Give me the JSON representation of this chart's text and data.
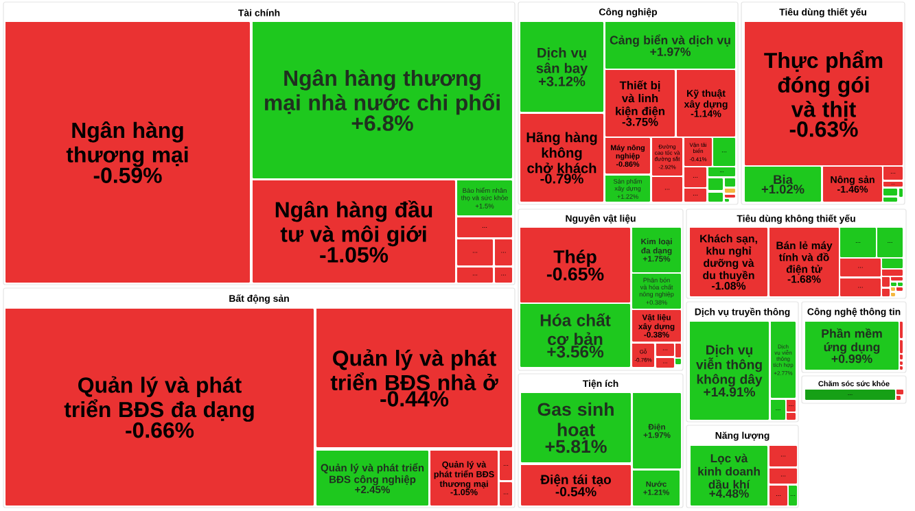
{
  "chart_data": [
    {
      "type": "other",
      "title": "Tài chính",
      "categories": [
        "Ngân hàng thương mại",
        "Ngân hàng thương mại nhà nước chi phối",
        "Ngân hàng đầu tư và môi giới",
        "Bảo hiểm nhân thọ và sức khỏe",
        "...",
        "...",
        "...",
        "...",
        "..."
      ],
      "values": [
        -0.59,
        6.8,
        -1.05,
        1.5,
        null,
        null,
        null,
        null,
        null
      ],
      "value_labels": [
        "-0.59%",
        "+6.8%",
        "-1.05%",
        "+1.5%",
        null,
        null,
        null,
        null,
        null
      ],
      "colors": [
        "#ea3232",
        "#1ec81e",
        "#ea3232",
        "#1ec81e",
        "#ea3232",
        "#ea3232",
        "#ea3232",
        "#ea3232",
        "#ea3232"
      ]
    },
    {
      "type": "other",
      "title": "Công nghiệp",
      "categories": [
        "Dịch vụ sân bay",
        "Hãng hàng không chở khách",
        "Cảng biển và dịch vụ",
        "Thiết bị và linh kiện điện",
        "Kỹ thuật xây dựng",
        "Máy nông nghiệp",
        "Đường cao tốc và đường sắt",
        "Vận tải biển",
        "...",
        "Sản phẩm xây dựng",
        "...",
        "...",
        "...",
        "...",
        null,
        null,
        null,
        null,
        null,
        null
      ],
      "values": [
        3.12,
        -0.79,
        1.97,
        -3.75,
        -1.14,
        -0.86,
        -2.92,
        -0.41,
        null,
        1.22,
        null,
        null,
        null,
        null,
        null,
        null,
        null,
        null,
        null,
        null
      ],
      "value_labels": [
        "+3.12%",
        "-0.79%",
        "+1.97%",
        "-3.75%",
        "-1.14%",
        "-0.86%",
        "-2.92%",
        "-0.41%",
        null,
        "+1.22%",
        null,
        null,
        null,
        null,
        null,
        null,
        null,
        null,
        null,
        null
      ],
      "colors": [
        "#1ec81e",
        "#ea3232",
        "#1ec81e",
        "#ea3232",
        "#ea3232",
        "#ea3232",
        "#ea3232",
        "#ea3232",
        "#1ec81e",
        "#1ec81e",
        "#ea3232",
        "#ea3232",
        "#ea3232",
        "#1ec81e",
        "#1ec81e",
        "#1ec81e",
        "#1ec81e",
        "#f4b840",
        "#ea3232",
        "#1ec81e"
      ]
    },
    {
      "type": "other",
      "title": "Tiêu dùng thiết yếu",
      "categories": [
        "Thực phẩm đóng gói và thịt",
        "Bia",
        "Nông sản",
        "...",
        "...",
        null,
        null,
        null
      ],
      "values": [
        -0.63,
        1.02,
        -1.46,
        null,
        null,
        null,
        null,
        null
      ],
      "value_labels": [
        "-0.63%",
        "+1.02%",
        "-1.46%",
        null,
        null,
        null,
        null,
        null
      ],
      "colors": [
        "#ea3232",
        "#1ec81e",
        "#ea3232",
        "#ea3232",
        "#ea3232",
        "#1ec81e",
        "#1ec81e",
        "#1ec81e"
      ]
    },
    {
      "type": "other",
      "title": "Nguyên vật liệu",
      "categories": [
        "Thép",
        "Hóa chất cơ bản",
        "Kim loại đa dạng",
        "Phân bón và hóa chất nông nghiệp",
        "Vật liệu xây dựng",
        "Gỗ",
        "...",
        "...",
        null,
        null
      ],
      "values": [
        -0.65,
        3.56,
        1.75,
        0.38,
        -0.38,
        -0.76,
        null,
        null,
        null,
        null
      ],
      "value_labels": [
        "-0.65%",
        "+3.56%",
        "+1.75%",
        "+0.38%",
        "-0.38%",
        "-0.76%",
        null,
        null,
        null,
        null
      ],
      "colors": [
        "#ea3232",
        "#1ec81e",
        "#1ec81e",
        "#1ec81e",
        "#ea3232",
        "#ea3232",
        "#ea3232",
        "#ea3232",
        "#ea3232",
        "#1ec81e"
      ]
    },
    {
      "type": "other",
      "title": "Tiêu dùng không thiết yếu",
      "categories": [
        "Khách sạn, khu nghỉ dưỡng và du thuyền",
        "Bán lẻ máy tính và đồ điện tử",
        "...",
        "...",
        "...",
        "...",
        null,
        null,
        null,
        null,
        null,
        null,
        null,
        null,
        null,
        null
      ],
      "values": [
        -1.08,
        -1.68,
        null,
        null,
        null,
        null,
        null,
        null,
        null,
        null,
        null,
        null,
        null,
        null,
        null,
        null
      ],
      "value_labels": [
        "-1.08%",
        "-1.68%",
        null,
        null,
        null,
        null,
        null,
        null,
        null,
        null,
        null,
        null,
        null,
        null,
        null,
        null
      ],
      "colors": [
        "#ea3232",
        "#ea3232",
        "#1ec81e",
        "#1ec81e",
        "#ea3232",
        "#ea3232",
        "#1ec81e",
        "#ea3232",
        "#ea3232",
        "#ea3232",
        "#ea3232",
        "#1ec81e",
        "#1ec81e",
        "#f4b840",
        "#ea3232",
        "#f4b840"
      ]
    },
    {
      "type": "other",
      "title": "Bất động sản",
      "categories": [
        "Quản lý và phát triển BĐS đa dạng",
        "Quản lý và phát triển BĐS nhà ở",
        "Quản lý và phát triển BĐS công nghiệp",
        "Quản lý và phát triển BĐS thương mại",
        "...",
        "..."
      ],
      "values": [
        -0.66,
        -0.44,
        2.45,
        -1.05,
        null,
        null
      ],
      "value_labels": [
        "-0.66%",
        "-0.44%",
        "+2.45%",
        "-1.05%",
        null,
        null
      ],
      "colors": [
        "#ea3232",
        "#ea3232",
        "#1ec81e",
        "#ea3232",
        "#ea3232",
        "#ea3232"
      ]
    },
    {
      "type": "other",
      "title": "Dịch vụ truyền thông",
      "categories": [
        "Dịch vụ viễn thông không dây",
        "Dịch vụ viễn thông tích hợp",
        "...",
        "...",
        null
      ],
      "values": [
        14.91,
        2.77,
        null,
        null,
        null
      ],
      "value_labels": [
        "+14.91%",
        "+2.77%",
        null,
        null,
        null
      ],
      "colors": [
        "#1ec81e",
        "#1ec81e",
        "#1ec81e",
        "#ea3232",
        "#ea3232"
      ]
    },
    {
      "type": "other",
      "title": "Công nghệ thông tin",
      "categories": [
        "Phần mềm ứng dụng",
        null,
        null,
        null,
        null,
        null
      ],
      "values": [
        0.99,
        null,
        null,
        null,
        null,
        null
      ],
      "value_labels": [
        "+0.99%",
        null,
        null,
        null,
        null,
        null
      ],
      "colors": [
        "#1ec81e",
        "#ea3232",
        "#ea3232",
        "#ea3232",
        "#ea3232",
        "#ea3232"
      ]
    },
    {
      "type": "other",
      "title": "Chăm sóc sức khỏe",
      "categories": [
        "...",
        null,
        null
      ],
      "values": [
        null,
        null,
        null
      ],
      "value_labels": [
        null,
        null,
        null
      ],
      "colors": [
        "#16a016",
        "#ea3232",
        "#ea3232"
      ]
    },
    {
      "type": "other",
      "title": "Tiện ích",
      "categories": [
        "Gas sinh hoạt",
        "Điện tái tạo",
        "Điện",
        "Nước"
      ],
      "values": [
        5.81,
        -0.54,
        1.97,
        1.21
      ],
      "value_labels": [
        "+5.81%",
        "-0.54%",
        "+1.97%",
        "+1.21%"
      ],
      "colors": [
        "#1ec81e",
        "#ea3232",
        "#1ec81e",
        "#1ec81e"
      ]
    },
    {
      "type": "other",
      "title": "Năng lượng",
      "categories": [
        "Lọc và kinh doanh dầu khí",
        "...",
        "...",
        "...",
        "..."
      ],
      "values": [
        4.48,
        null,
        null,
        null,
        null
      ],
      "value_labels": [
        "+4.48%",
        null,
        null,
        null,
        null
      ],
      "colors": [
        "#1ec81e",
        "#ea3232",
        "#ea3232",
        "#ea3232",
        "#1ec81e"
      ]
    }
  ]
}
